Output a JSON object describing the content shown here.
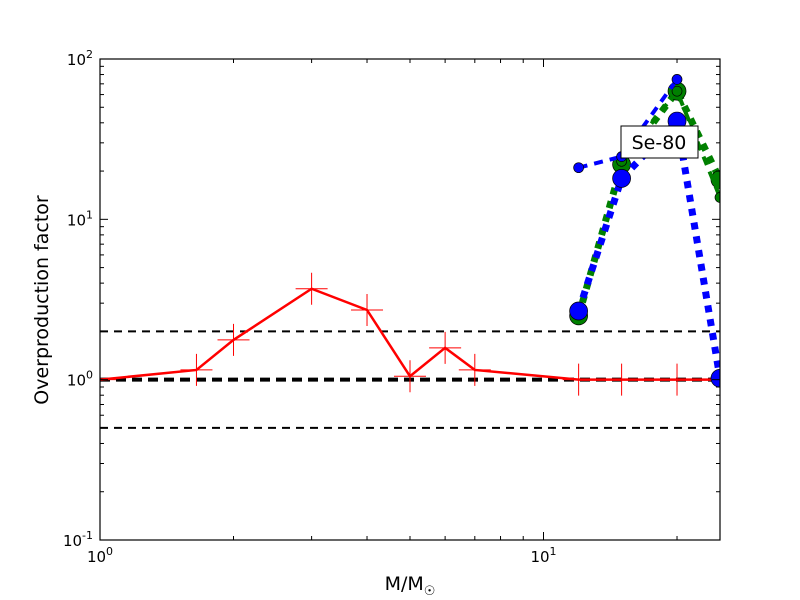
{
  "chart_data": {
    "type": "line",
    "xlabel": "M/M",
    "xlabel_subscript": "☉",
    "ylabel": "Overproduction factor",
    "xscale": "log",
    "yscale": "log",
    "xlim": [
      1,
      25
    ],
    "ylim": [
      0.1,
      100
    ],
    "x_tick_labels": [
      {
        "value": 1,
        "base": "10",
        "exp": "0"
      },
      {
        "value": 10,
        "base": "10",
        "exp": "1"
      }
    ],
    "y_tick_labels": [
      {
        "value": 0.1,
        "base": "10",
        "exp": "-1"
      },
      {
        "value": 1,
        "base": "10",
        "exp": "0"
      },
      {
        "value": 10,
        "base": "10",
        "exp": "1"
      },
      {
        "value": 100,
        "base": "10",
        "exp": "2"
      }
    ],
    "annotation": "Se-80",
    "reference_lines": [
      {
        "y": 2,
        "style": "dashed",
        "color": "#000000"
      },
      {
        "y": 1,
        "style": "thick-dashed",
        "color": "#000000"
      },
      {
        "y": 0.5,
        "style": "dashed",
        "color": "#000000"
      }
    ],
    "series": [
      {
        "color": "#ff0000",
        "style": "solid",
        "marker": "plus",
        "x": [
          1,
          1.65,
          2,
          3,
          4,
          5,
          6,
          7,
          12,
          15,
          20,
          25
        ],
        "y": [
          1,
          1.15,
          1.77,
          3.69,
          2.72,
          1.05,
          1.58,
          1.15,
          1,
          1,
          1,
          1
        ]
      },
      {
        "color": "#008000",
        "style": "thick-dotted",
        "marker": "large-circle",
        "x": [
          12,
          15,
          20,
          25
        ],
        "y": [
          2.5,
          22,
          63,
          17.7
        ]
      },
      {
        "color": "#008000",
        "style": "dashed",
        "marker": "small-circle",
        "x": [
          15,
          20,
          25
        ],
        "y": [
          23,
          63,
          13.7
        ]
      },
      {
        "color": "#0000ff",
        "style": "dashed",
        "marker": "small-circle",
        "x": [
          12,
          15,
          20
        ],
        "y": [
          21,
          24.6,
          74.6
        ]
      },
      {
        "color": "#0000ff",
        "style": "thick-dotted",
        "marker": "large-circle",
        "x": [
          12,
          15,
          20,
          25
        ],
        "y": [
          2.68,
          18,
          41,
          1.02
        ]
      }
    ]
  }
}
